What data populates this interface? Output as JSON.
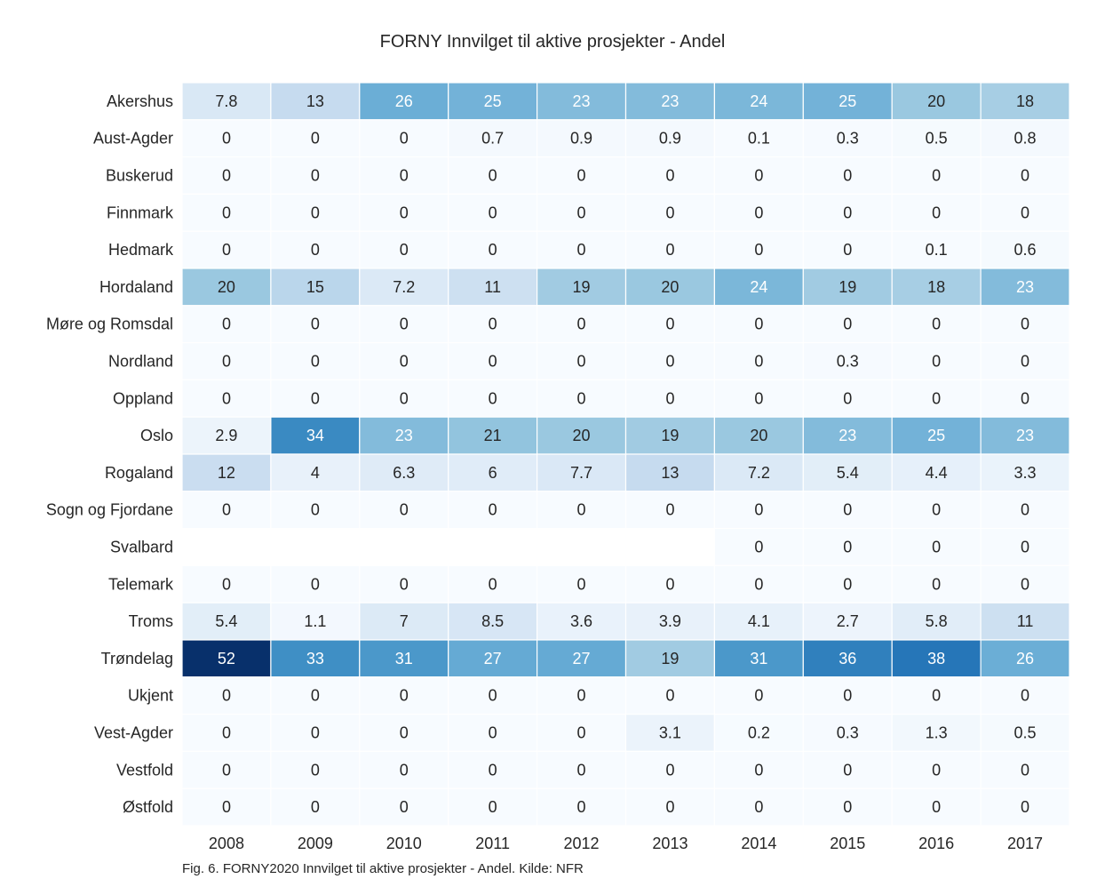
{
  "caption": "Fig. 6. FORNY2020 Innvilget til aktive prosjekter - Andel. Kilde: NFR",
  "chart_data": {
    "type": "heatmap",
    "title": "FORNY Innvilget til aktive prosjekter - Andel",
    "xlabel": "",
    "ylabel": "",
    "colormap": "Blues",
    "vmin": 0,
    "vmax": 52,
    "x": [
      "2008",
      "2009",
      "2010",
      "2011",
      "2012",
      "2013",
      "2014",
      "2015",
      "2016",
      "2017"
    ],
    "y": [
      "Akershus",
      "Aust-Agder",
      "Buskerud",
      "Finnmark",
      "Hedmark",
      "Hordaland",
      "Møre og Romsdal",
      "Nordland",
      "Oppland",
      "Oslo",
      "Rogaland",
      "Sogn og Fjordane",
      "Svalbard",
      "Telemark",
      "Troms",
      "Trøndelag",
      "Ukjent",
      "Vest-Agder",
      "Vestfold",
      "Østfold"
    ],
    "values": [
      [
        7.8,
        13,
        26,
        25,
        23,
        23,
        24,
        25,
        20,
        18
      ],
      [
        0,
        0,
        0,
        0.7,
        0.9,
        0.9,
        0.1,
        0.3,
        0.5,
        0.8
      ],
      [
        0,
        0,
        0,
        0,
        0,
        0,
        0,
        0,
        0,
        0
      ],
      [
        0,
        0,
        0,
        0,
        0,
        0,
        0,
        0,
        0,
        0
      ],
      [
        0,
        0,
        0,
        0,
        0,
        0,
        0,
        0,
        0.1,
        0.6
      ],
      [
        20,
        15,
        7.2,
        11,
        19,
        20,
        24,
        19,
        18,
        23
      ],
      [
        0,
        0,
        0,
        0,
        0,
        0,
        0,
        0,
        0,
        0
      ],
      [
        0,
        0,
        0,
        0,
        0,
        0,
        0,
        0.3,
        0,
        0
      ],
      [
        0,
        0,
        0,
        0,
        0,
        0,
        0,
        0,
        0,
        0
      ],
      [
        2.9,
        34,
        23,
        21,
        20,
        19,
        20,
        23,
        25,
        23
      ],
      [
        12,
        4,
        6.3,
        6,
        7.7,
        13,
        7.2,
        5.4,
        4.4,
        3.3
      ],
      [
        0,
        0,
        0,
        0,
        0,
        0,
        0,
        0,
        0,
        0
      ],
      [
        null,
        null,
        null,
        null,
        null,
        null,
        0,
        0,
        0,
        0
      ],
      [
        0,
        0,
        0,
        0,
        0,
        0,
        0,
        0,
        0,
        0
      ],
      [
        5.4,
        1.1,
        7,
        8.5,
        3.6,
        3.9,
        4.1,
        2.7,
        5.8,
        11
      ],
      [
        52,
        33,
        31,
        27,
        27,
        19,
        31,
        36,
        38,
        26
      ],
      [
        0,
        0,
        0,
        0,
        0,
        0,
        0,
        0,
        0,
        0
      ],
      [
        0,
        0,
        0,
        0,
        0,
        3.1,
        0.2,
        0.3,
        1.3,
        0.5
      ],
      [
        0,
        0,
        0,
        0,
        0,
        0,
        0,
        0,
        0,
        0
      ],
      [
        0,
        0,
        0,
        0,
        0,
        0,
        0,
        0,
        0,
        0
      ]
    ]
  }
}
